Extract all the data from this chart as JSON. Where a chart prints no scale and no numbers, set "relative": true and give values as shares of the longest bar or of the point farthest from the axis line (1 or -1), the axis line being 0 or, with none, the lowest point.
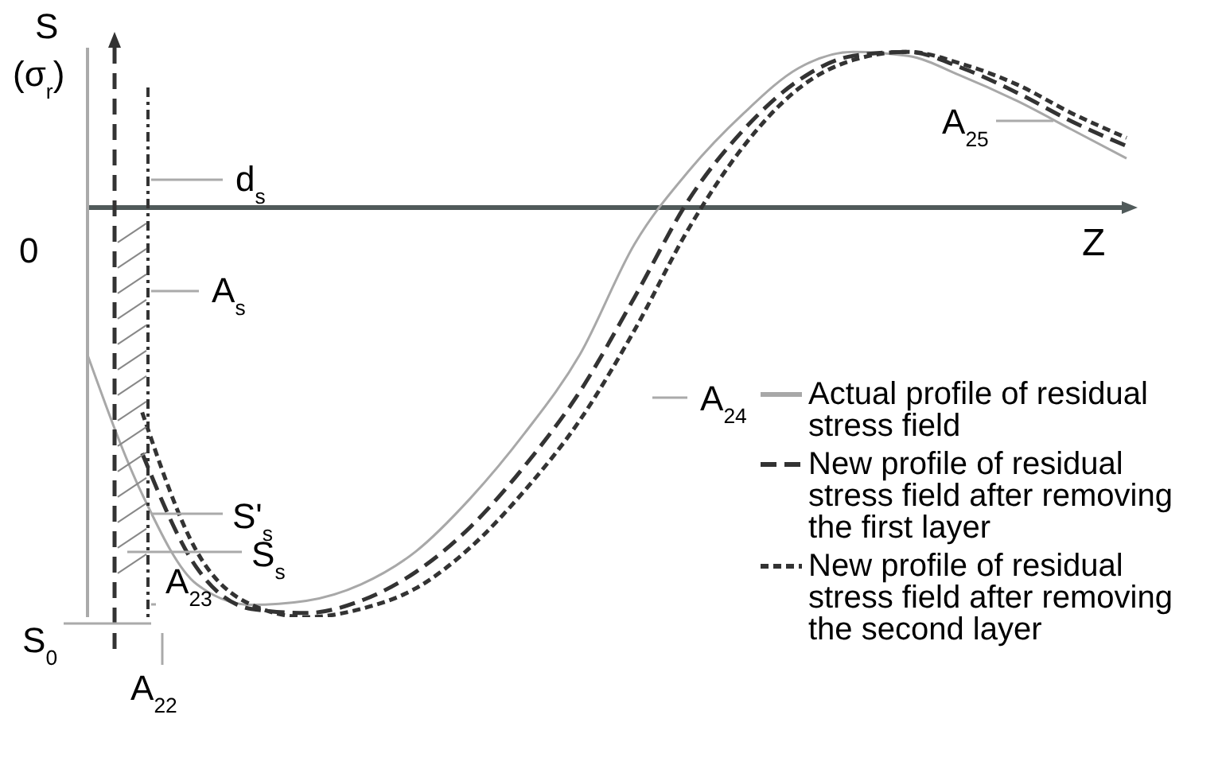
{
  "chart_data": {
    "type": "line",
    "relative": true,
    "xlabel": "Z",
    "ylabel": "S (σ$_{r}$)",
    "categories": [
      null,
      null,
      null,
      null,
      null,
      null,
      null,
      null,
      null,
      null,
      null,
      null,
      null,
      null,
      null,
      null,
      null,
      null,
      null,
      null
    ],
    "series": [
      {
        "name": "Actual profile of residual stress field",
        "color": "#a8a8a8",
        "line_style": "solid",
        "values": [
          -0.36,
          -0.7,
          -0.92,
          -0.97,
          -0.96,
          -0.92,
          -0.84,
          -0.71,
          -0.55,
          -0.36,
          -0.09,
          0.09,
          0.23,
          0.34,
          0.38,
          0.37,
          0.32,
          0.26,
          0.19,
          0.12
        ]
      },
      {
        "name": "New profile of residual stress field after removing the first layer",
        "color": "#333333",
        "line_style": "dashed",
        "values": [
          null,
          -0.6,
          -0.88,
          -0.98,
          -0.99,
          -0.96,
          -0.89,
          -0.78,
          -0.63,
          -0.45,
          -0.22,
          0.02,
          0.19,
          0.31,
          0.37,
          0.38,
          0.34,
          0.28,
          0.21,
          0.15
        ]
      },
      {
        "name": "New profile of residual stress field after removing the second layer",
        "color": "#333333",
        "line_style": "dotted",
        "values": [
          null,
          -0.5,
          -0.84,
          -0.97,
          -1,
          -0.98,
          -0.93,
          -0.83,
          -0.69,
          -0.52,
          -0.3,
          -0.05,
          0.15,
          0.29,
          0.36,
          0.38,
          0.35,
          0.3,
          0.23,
          0.17
        ]
      }
    ],
    "annotations": [
      "d$_{s}$",
      "A$_{s}$",
      "S'$_{s}$",
      "S$_{s}$",
      "A$_{23}$",
      "S$_{0}$",
      "A$_{22}$",
      "A$_{24}$",
      "A$_{25}$",
      "0"
    ],
    "legend": "bottom right",
    "grid": false
  }
}
